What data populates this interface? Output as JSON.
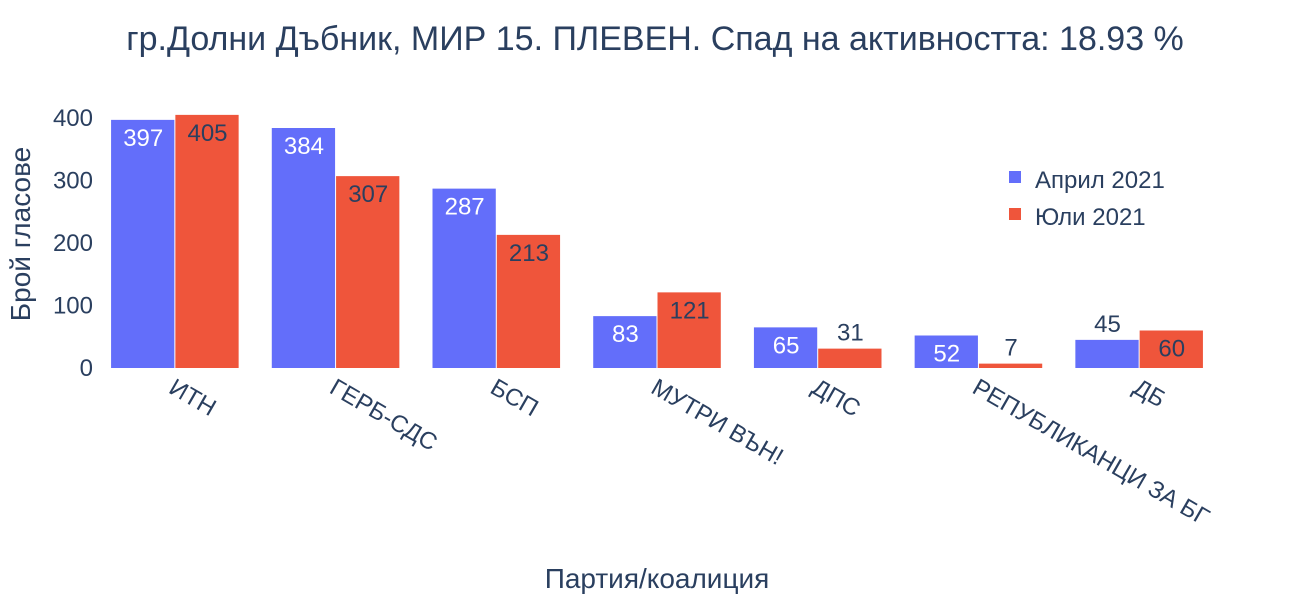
{
  "colors": {
    "april": "#636efa",
    "july": "#ef553b",
    "text": "#2a3f5f"
  },
  "chart_data": {
    "type": "bar",
    "title": "гр.Долни Дъбник, МИР 15. ПЛЕВЕН. Спад на активността: 18.93 %",
    "xlabel": "Партия/коалиция",
    "ylabel": "Брой гласове",
    "ylim": [
      0,
      400
    ],
    "yticks": [
      0,
      100,
      200,
      300,
      400
    ],
    "categories": [
      "ИТН",
      "ГЕРБ-СДС",
      "БСП",
      "МУТРИ ВЪН!",
      "ДПС",
      "РЕПУБЛИКАНЦИ ЗА БГ",
      "ДБ"
    ],
    "series": [
      {
        "name": "Април 2021",
        "values": [
          397,
          384,
          287,
          83,
          65,
          52,
          45
        ]
      },
      {
        "name": "Юли 2021",
        "values": [
          405,
          307,
          213,
          121,
          31,
          7,
          60
        ]
      }
    ],
    "legend": "top-right",
    "grid": false
  }
}
